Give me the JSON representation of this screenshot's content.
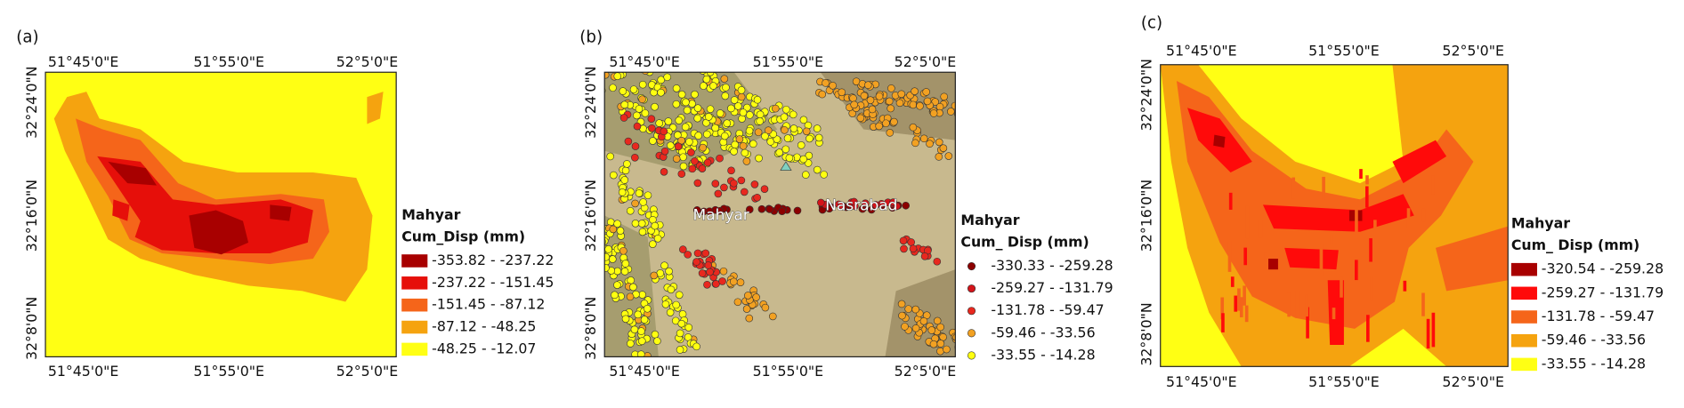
{
  "panels": [
    {
      "label": "(a)",
      "x_ticks": [
        "51°45'0\"E",
        "51°55'0\"E",
        "52°5'0\"E"
      ],
      "y_ticks": [
        "32°24'0\"N",
        "32°16'0\"N",
        "32°8'0\"N"
      ],
      "legend": {
        "title": "Mahyar",
        "subtitle": "Cum_Disp (mm)",
        "items": [
          {
            "label": "-353.82 - -237.22",
            "color": "#a80000"
          },
          {
            "label": "-237.22 - -151.45",
            "color": "#e60f0a"
          },
          {
            "label": "-151.45 - -87.12",
            "color": "#f5651a"
          },
          {
            "label": "-87.12 - -48.25",
            "color": "#f5a30f"
          },
          {
            "label": "-48.25 - -12.07",
            "color": "#ffff14"
          }
        ]
      }
    },
    {
      "label": "(b)",
      "x_ticks": [
        "51°45'0\"E",
        "51°55'0\"E",
        "52°5'0\"E"
      ],
      "y_ticks": [
        "32°24'0\"N",
        "32°16'0\"N",
        "32°8'0\"N"
      ],
      "places": [
        "Mahyar",
        "Nasrabad"
      ],
      "legend": {
        "title": "Mahyar",
        "subtitle": "Cum_ Disp (mm)",
        "items": [
          {
            "label": "-330.33 - -259.28",
            "color": "#8c0000"
          },
          {
            "label": "-259.27 - -131.79",
            "color": "#d4141a"
          },
          {
            "label": "-131.78 - -59.47",
            "color": "#e8281e"
          },
          {
            "label": "-59.46 - -33.56",
            "color": "#f2a122"
          },
          {
            "label": "-33.55 - -14.28",
            "color": "#ffff10"
          }
        ]
      }
    },
    {
      "label": "(c)",
      "x_ticks": [
        "51°45'0\"E",
        "51°55'0\"E",
        "52°5'0\"E"
      ],
      "y_ticks": [
        "32°24'0\"N",
        "32°16'0\"N",
        "32°8'0\"N"
      ],
      "legend": {
        "title": "Mahyar",
        "subtitle": "Cum_ Disp (mm)",
        "items": [
          {
            "label": "-320.54 - -259.28",
            "color": "#a80000"
          },
          {
            "label": "-259.27 - -131.79",
            "color": "#ff0a0a"
          },
          {
            "label": "-131.78 - -59.47",
            "color": "#f5651a"
          },
          {
            "label": "-59.46 - -33.56",
            "color": "#f5a30f"
          },
          {
            "label": "-33.55 - -14.28",
            "color": "#ffff14"
          }
        ]
      }
    }
  ]
}
